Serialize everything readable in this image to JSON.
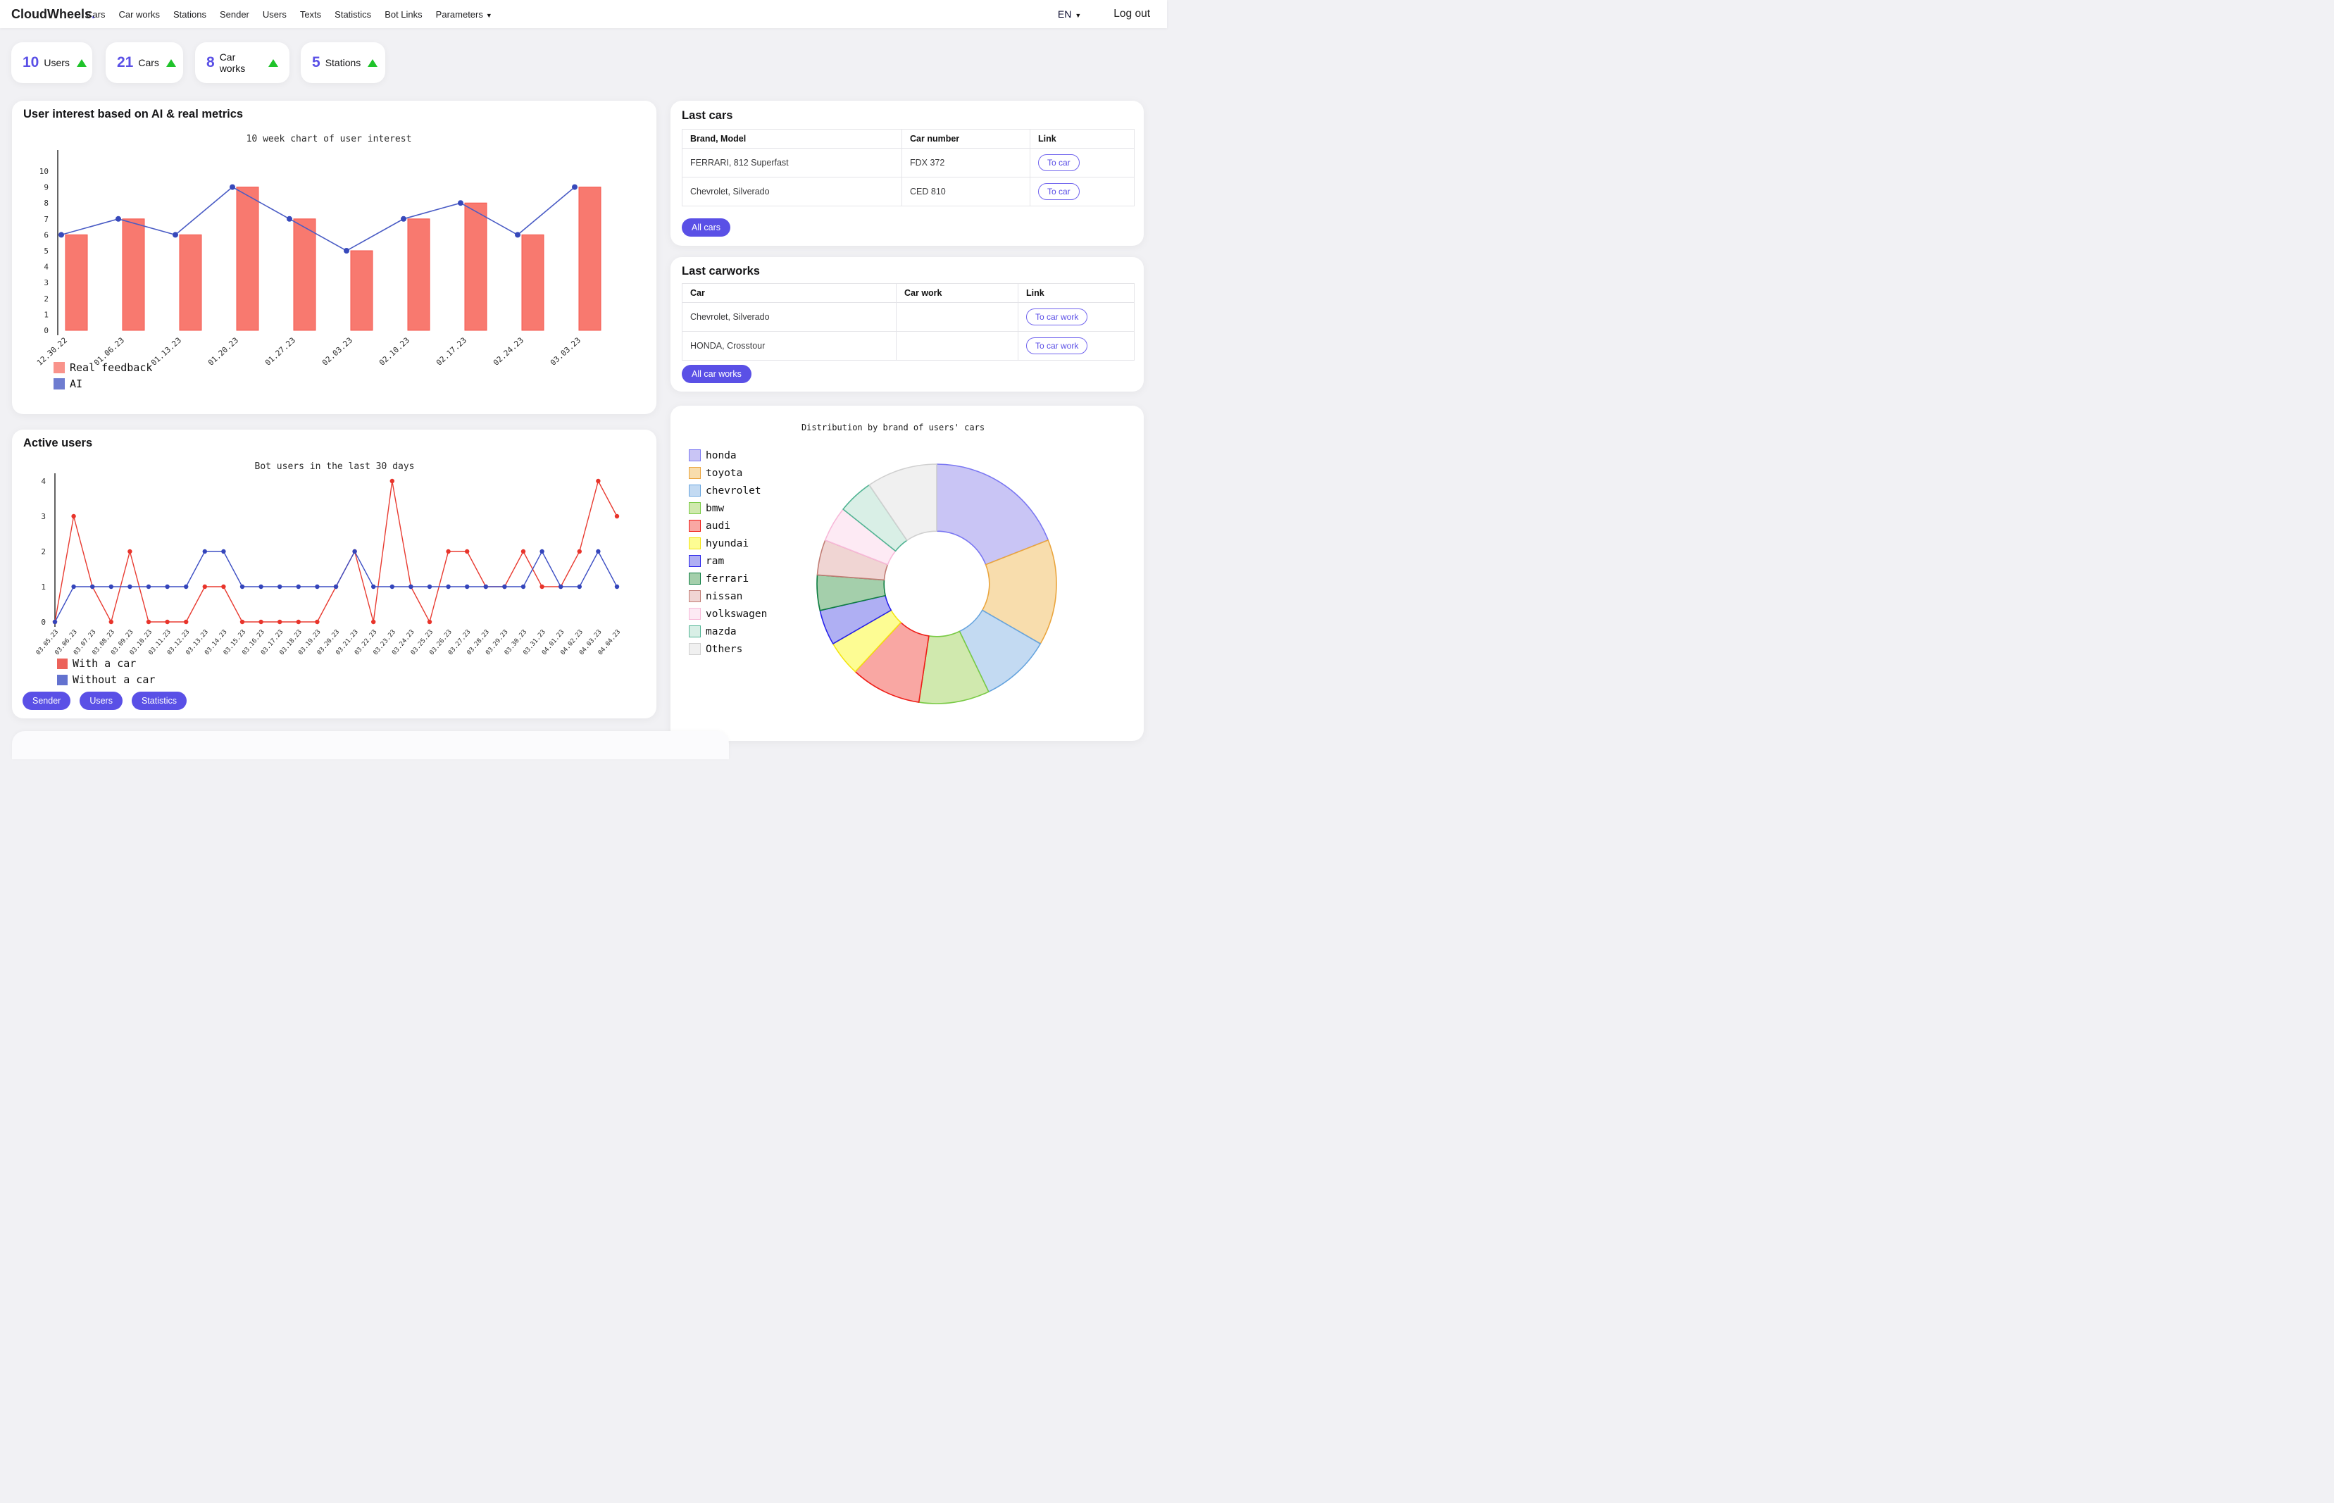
{
  "nav": {
    "brand": "CloudWheels",
    "brand_dot": ".",
    "items": [
      "Cars",
      "Car works",
      "Stations",
      "Sender",
      "Users",
      "Texts",
      "Statistics",
      "Bot Links",
      "Parameters"
    ],
    "language": "EN",
    "logout": "Log out"
  },
  "stats": [
    {
      "value": "10",
      "label": "Users"
    },
    {
      "value": "21",
      "label": "Cars"
    },
    {
      "value": "8",
      "label": "Car works"
    },
    {
      "value": "5",
      "label": "Stations"
    }
  ],
  "user_interest": {
    "title": "User interest based on AI & real metrics"
  },
  "active_users": {
    "title": "Active users",
    "buttons": [
      "Sender",
      "Users",
      "Statistics"
    ]
  },
  "last_cars": {
    "title": "Last cars",
    "headers": [
      "Brand, Model",
      "Car number",
      "Link"
    ],
    "rows": [
      {
        "brand_model": "FERRARI, 812 Superfast",
        "car_number": "FDX 372",
        "link": "To car"
      },
      {
        "brand_model": "Chevrolet, Silverado",
        "car_number": "CED 810",
        "link": "To car"
      }
    ],
    "all_button": "All cars"
  },
  "last_carworks": {
    "title": "Last carworks",
    "headers": [
      "Car",
      "Car work",
      "Link"
    ],
    "rows": [
      {
        "car": "Chevrolet, Silverado",
        "car_work": "",
        "link": "To car work"
      },
      {
        "car": "HONDA, Crosstour",
        "car_work": "",
        "link": "To car work"
      }
    ],
    "all_button": "All car works"
  },
  "chart_data": [
    {
      "type": "bar",
      "name": "weekly_user_interest",
      "title": "10 week chart of user interest",
      "categories": [
        "12.30.22",
        "01.06.23",
        "01.13.23",
        "01.20.23",
        "01.27.23",
        "02.03.23",
        "02.10.23",
        "02.17.23",
        "02.24.23",
        "03.03.23"
      ],
      "series": [
        {
          "name": "Real feedback",
          "type": "bar",
          "color": "#f8796f",
          "border": "#f4564c",
          "values": [
            6,
            7,
            6,
            9,
            7,
            5,
            7,
            8,
            6,
            9
          ]
        },
        {
          "name": "AI",
          "type": "line",
          "color": "#4a5cc5",
          "marker": "#3749bb",
          "values": [
            6,
            7,
            6,
            9,
            7,
            5,
            7,
            8,
            6,
            9
          ]
        }
      ],
      "ylim": [
        0,
        10
      ],
      "yticks": [
        0,
        1,
        2,
        3,
        4,
        5,
        6,
        7,
        8,
        9,
        10
      ],
      "grid": false,
      "legend_position": "bottom-left"
    },
    {
      "type": "line",
      "name": "bot_users_last_30_days",
      "title": "Bot users in the last 30 days",
      "categories": [
        "03.05.23",
        "03.06.23",
        "03.07.23",
        "03.08.23",
        "03.09.23",
        "03.10.23",
        "03.11.23",
        "03.12.23",
        "03.13.23",
        "03.14.23",
        "03.15.23",
        "03.16.23",
        "03.17.23",
        "03.18.23",
        "03.19.23",
        "03.20.23",
        "03.21.23",
        "03.22.23",
        "03.23.23",
        "03.24.23",
        "03.25.23",
        "03.26.23",
        "03.27.23",
        "03.28.23",
        "03.29.23",
        "03.30.23",
        "03.31.23",
        "04.01.23",
        "04.02.23",
        "04.03.23",
        "04.04.23"
      ],
      "series": [
        {
          "name": "With a car",
          "type": "line",
          "color": "#e83b31",
          "marker": "#e8342b",
          "values": [
            0,
            3,
            1,
            0,
            2,
            0,
            0,
            0,
            1,
            1,
            0,
            0,
            0,
            0,
            0,
            1,
            2,
            0,
            4,
            1,
            0,
            2,
            2,
            1,
            1,
            2,
            1,
            1,
            2,
            4,
            3
          ]
        },
        {
          "name": "Without a car",
          "type": "line",
          "color": "#3d4fc4",
          "marker": "#3445bb",
          "values": [
            0,
            1,
            1,
            1,
            1,
            1,
            1,
            1,
            2,
            2,
            1,
            1,
            1,
            1,
            1,
            1,
            2,
            1,
            1,
            1,
            1,
            1,
            1,
            1,
            1,
            1,
            2,
            1,
            1,
            2,
            1
          ]
        }
      ],
      "ylim": [
        0,
        4
      ],
      "yticks": [
        0,
        1,
        2,
        3,
        4
      ],
      "grid": false,
      "legend_position": "bottom-left"
    },
    {
      "type": "pie",
      "name": "brand_distribution",
      "title": "Distribution by brand of users' cars",
      "labels": [
        "honda",
        "toyota",
        "chevrolet",
        "bmw",
        "audi",
        "hyundai",
        "ram",
        "ferrari",
        "nissan",
        "volkswagen",
        "mazda",
        "Others"
      ],
      "values": [
        4,
        3,
        2,
        2,
        2,
        1,
        1,
        1,
        1,
        1,
        1,
        2
      ],
      "fills": [
        "#c9c5f5",
        "#f8ddad",
        "#c3daf2",
        "#d0e9ae",
        "#f9a7a3",
        "#fdfc93",
        "#afaff3",
        "#a4cfab",
        "#f0d5d3",
        "#fdeaf4",
        "#d9efe6",
        "#f0f0f0"
      ],
      "strokes": [
        "#7b78f2",
        "#eaa53e",
        "#66a4de",
        "#79ca45",
        "#ef1d17",
        "#f3e410",
        "#2823ea",
        "#0e7d41",
        "#c07b73",
        "#f7b9d9",
        "#51b493",
        "#d0d0d0"
      ],
      "donut_hole": 0.44,
      "legend_position": "left"
    }
  ],
  "colors": {
    "accent": "#5a50e6",
    "positive": "#1fc32a",
    "background": "#f1f1f4"
  }
}
